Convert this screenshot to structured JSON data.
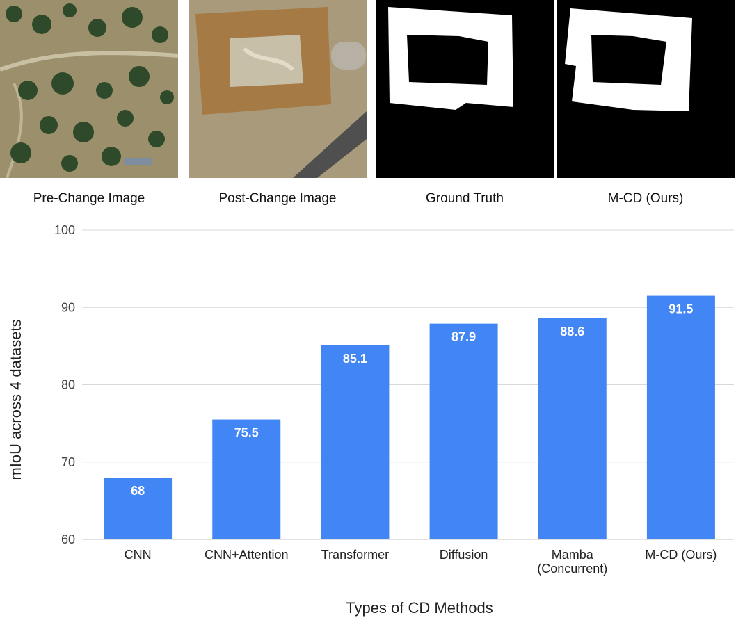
{
  "panels": [
    {
      "label": "Pre-Change Image"
    },
    {
      "label": "Post-Change Image"
    },
    {
      "label": "Ground Truth"
    },
    {
      "label": "M-CD (Ours)"
    }
  ],
  "colors": {
    "bar": "#4285f4",
    "grid": "#d9d9d9",
    "mask_fg": "#ffffff",
    "mask_bg": "#000000"
  },
  "chart_data": {
    "type": "bar",
    "categories": [
      "CNN",
      "CNN+Attention",
      "Transformer",
      "Diffusion",
      "Mamba\n(Concurrent)",
      "M-CD (Ours)"
    ],
    "values": [
      68,
      75.5,
      85.1,
      87.9,
      88.6,
      91.5
    ],
    "data_labels": [
      "68",
      "75.5",
      "85.1",
      "87.9",
      "88.6",
      "91.5"
    ],
    "xlabel": "Types of CD Methods",
    "ylabel": "mIoU across 4 datasets",
    "ylim": [
      60,
      100
    ],
    "yticks": [
      60,
      70,
      80,
      90,
      100
    ],
    "grid": true,
    "legend": "none"
  }
}
